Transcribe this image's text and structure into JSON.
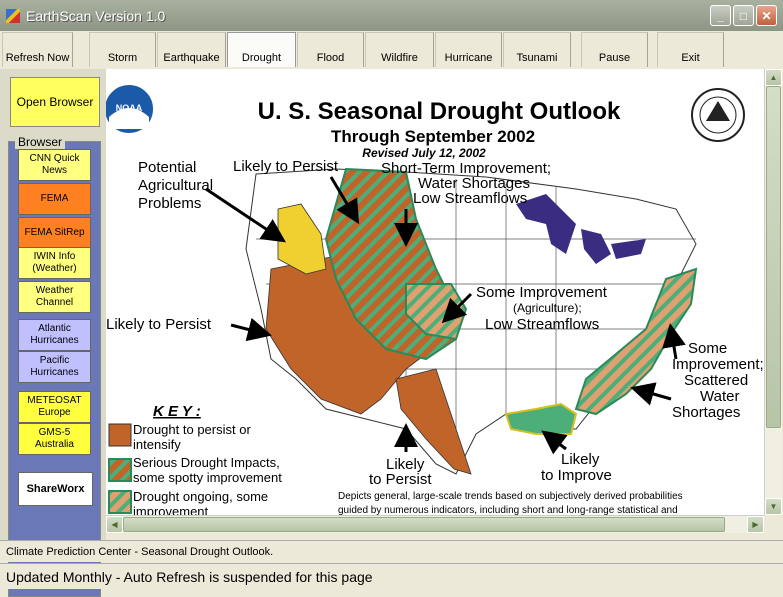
{
  "window": {
    "title": "EarthScan Version 1.0"
  },
  "toolbar": {
    "buttons": [
      {
        "label": "Refresh Now"
      },
      {
        "label": "Storm"
      },
      {
        "label": "Earthquake"
      },
      {
        "label": "Drought"
      },
      {
        "label": "Flood"
      },
      {
        "label": "Wildfire"
      },
      {
        "label": "Hurricane"
      },
      {
        "label": "Tsunami"
      },
      {
        "label": "Pause"
      },
      {
        "label": "Exit"
      }
    ]
  },
  "sidebar": {
    "open_browser": "Open Browser",
    "group_label": "Browser",
    "buttons": [
      {
        "label": "CNN Quick News",
        "color": "#ffff80"
      },
      {
        "label": "FEMA",
        "color": "#ff8020"
      },
      {
        "label": "FEMA SitRep",
        "color": "#ff8020"
      },
      {
        "label": "IWIN Info (Weather)",
        "color": "#ffff80"
      },
      {
        "label": "Weather Channel",
        "color": "#ffff80"
      },
      {
        "label": "Atlantic Hurricanes",
        "color": "#c0c0ff"
      },
      {
        "label": "Pacific Hurricanes",
        "color": "#c0c0ff"
      },
      {
        "label": "METEOSAT Europe",
        "color": "#ffff40"
      },
      {
        "label": "GMS-5 Australia",
        "color": "#ffff40"
      }
    ],
    "shareworx": "ShareWorx"
  },
  "map": {
    "title": "U. S. Seasonal Drought Outlook",
    "subtitle": "Through September 2002",
    "revised": "Revised July 12, 2002",
    "noaa_logo_text": "NOAA",
    "annotations": {
      "potential_ag_1": "Potential",
      "potential_ag_2": "Agricultural",
      "potential_ag_3": "Problems",
      "likely_persist_top": "Likely to Persist",
      "short_term_1": "Short-Term Improvement;",
      "short_term_2": "Water Shortages",
      "short_term_3": "Low Streamflows",
      "likely_persist_left": "Likely to Persist",
      "some_impr_1": "Some Improvement",
      "some_impr_2": "(Agriculture);",
      "some_impr_3": "Low Streamflows",
      "se_1": "Some",
      "se_2": "Improvement;",
      "se_3": "Scattered",
      "se_4": "Water",
      "se_5": "Shortages",
      "likely_persist_bottom_1": "Likely",
      "likely_persist_bottom_2": "to Persist",
      "likely_improve_1": "Likely",
      "likely_improve_2": "to Improve"
    },
    "key": {
      "title": "K E Y :",
      "items": [
        {
          "line1": "Drought to persist or",
          "line2": "intensify"
        },
        {
          "line1": "Serious Drought Impacts,",
          "line2": "some spotty improvement"
        },
        {
          "line1": "Drought ongoing, some",
          "line2": "improvement"
        }
      ]
    },
    "footnote_1": "Depicts general, large-scale trends based on subjectively derived probabilities",
    "footnote_2": "guided by numerous indicators, including short and long-range statistical and"
  },
  "status": {
    "line1": "Climate Prediction Center - Seasonal Drought Outlook.",
    "line2": "Updated Monthly - Auto Refresh is suspended for this page"
  },
  "colors": {
    "drought_persist": "#c0642a",
    "drought_impr_green": "#4caf7a",
    "land": "#ffffff",
    "lakes": "#3a2c80",
    "agri_yellow": "#f0d030"
  }
}
